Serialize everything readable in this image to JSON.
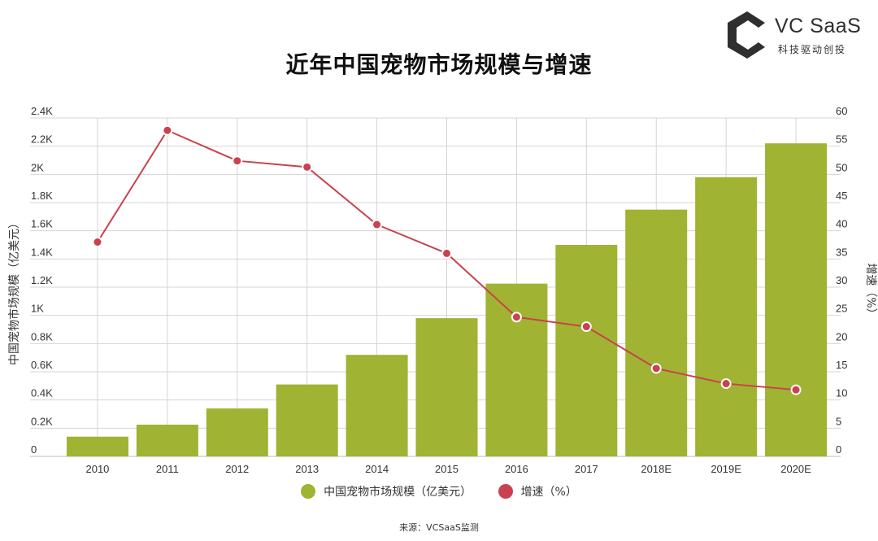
{
  "logo": {
    "name": "VC SaaS",
    "tagline": "科技驱动创投"
  },
  "source_note": "来源：VCSaaS监测",
  "chart_data": {
    "type": "bar",
    "title": "近年中国宠物市场规模与增速",
    "categories": [
      "2010",
      "2011",
      "2012",
      "2013",
      "2014",
      "2015",
      "2016",
      "2017",
      "2018E",
      "2019E",
      "2020E"
    ],
    "series": [
      {
        "name": "中国宠物市场规模（亿美元）",
        "type": "bar",
        "axis": "left",
        "color": "#a0b332",
        "values": [
          140,
          225,
          340,
          510,
          720,
          980,
          1225,
          1500,
          1750,
          1980,
          2220
        ]
      },
      {
        "name": "增速（%）",
        "type": "line",
        "axis": "right",
        "color": "#c9424f",
        "values": [
          38,
          57.8,
          52.4,
          51.3,
          41.1,
          36,
          24.7,
          23,
          15.6,
          12.9,
          11.8
        ]
      }
    ],
    "ylabel": "中国宠物市场规模（亿美元）",
    "y2label": "增速（%）",
    "ylim": [
      0,
      2400
    ],
    "y2lim": [
      0,
      60
    ],
    "yticks": [
      "0",
      "0.2K",
      "0.4K",
      "0.6K",
      "0.8K",
      "1K",
      "1.2K",
      "1.4K",
      "1.6K",
      "1.8K",
      "2K",
      "2.2K",
      "2.4K"
    ],
    "y2ticks": [
      "0",
      "5",
      "10",
      "15",
      "20",
      "25",
      "30",
      "35",
      "40",
      "45",
      "50",
      "55",
      "60"
    ],
    "grid": true,
    "legend_position": "bottom"
  }
}
